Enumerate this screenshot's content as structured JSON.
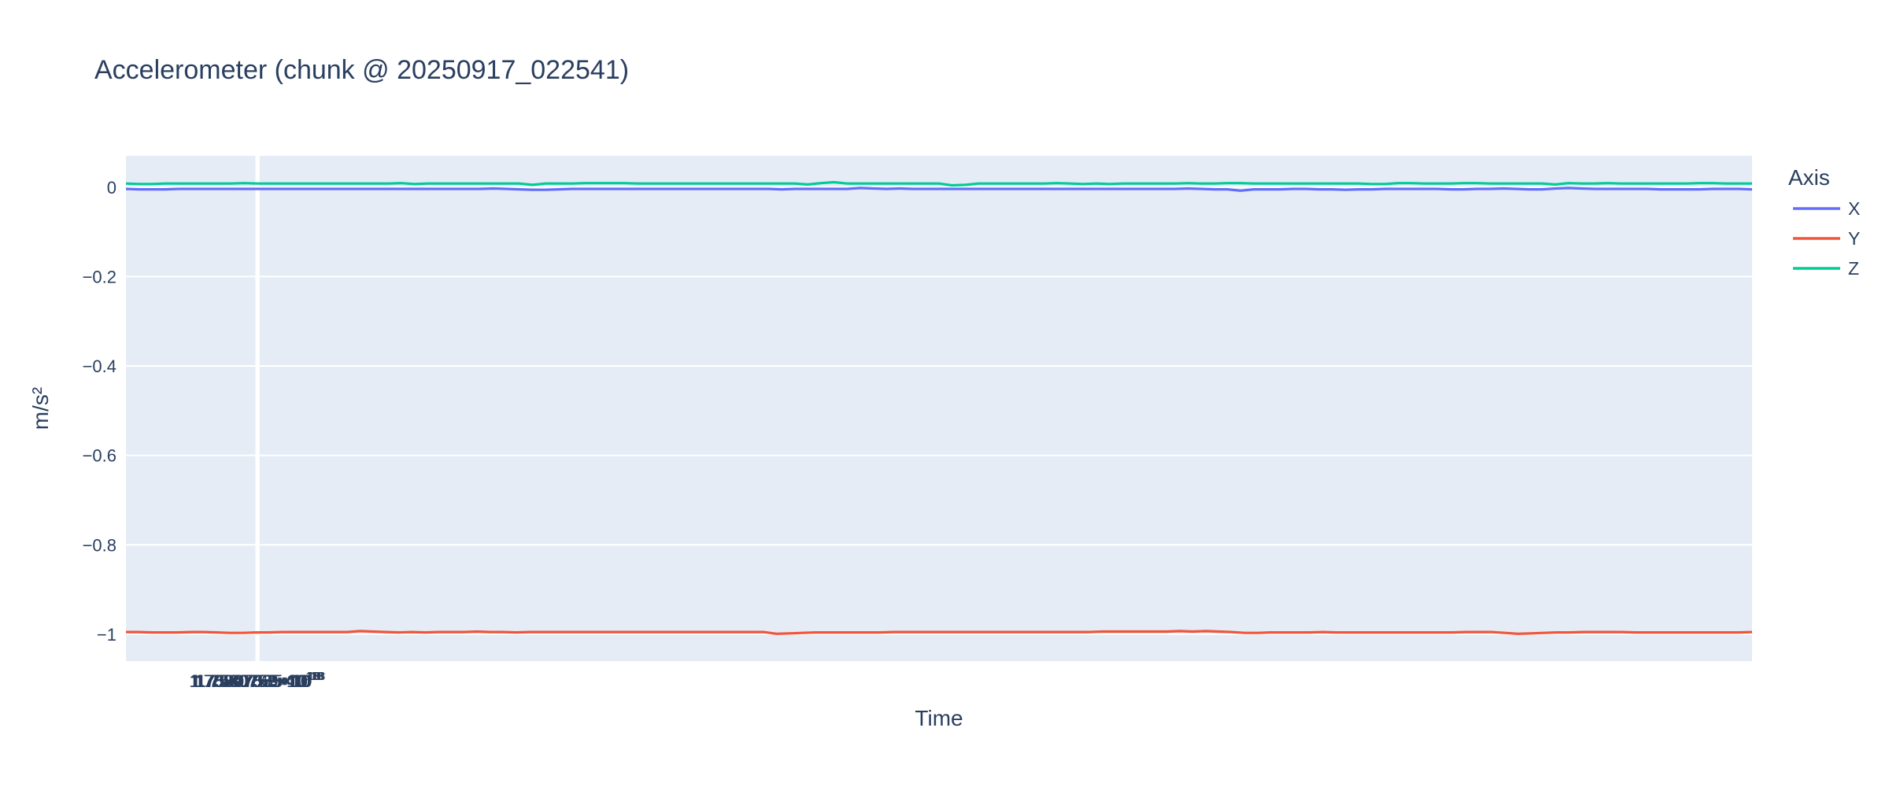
{
  "chart_data": {
    "type": "line",
    "title": "Accelerometer (chunk @ 20250917_022541)",
    "xlabel": "Time",
    "ylabel": "m/s²",
    "x_tick_labels": [
      {
        "value": 1.75807565e+18,
        "mantissa": "1.75807565",
        "exponent": "18"
      },
      {
        "value": 1.7580757e+18,
        "mantissa": "1.7580757",
        "exponent": "18"
      },
      {
        "value": 1.75807575e+18,
        "mantissa": "1.75807575",
        "exponent": "18"
      },
      {
        "value": 1.7580758e+18,
        "mantissa": "1.7580758",
        "exponent": "18"
      },
      {
        "value": 1.75807585e+18,
        "mantissa": "1.75807585",
        "exponent": "18"
      },
      {
        "value": 1.7580759e+18,
        "mantissa": "1.7580759",
        "exponent": "18"
      }
    ],
    "y_tick_labels": [
      "0",
      "−0.2",
      "−0.4",
      "−0.6",
      "−0.8",
      "−1"
    ],
    "y_ticks": [
      0,
      -0.2,
      -0.4,
      -0.6,
      -0.8,
      -1
    ],
    "xlim_offset_units": [
      -0.245,
      2.815
    ],
    "x_axis_base": 1.75807565e+18,
    "x_axis_unit": 50000000000000.0,
    "ylim": [
      -1.06,
      0.07
    ],
    "grid": true,
    "legend": {
      "title": "Axis",
      "position": "right"
    },
    "colors": {
      "plot_bg": "#e5ecf6",
      "grid": "#ffffff",
      "text": "#2a3f5f"
    },
    "series": [
      {
        "name": "X",
        "color": "#636efa",
        "values": [
          -0.004,
          -0.005,
          -0.005,
          -0.005,
          -0.004,
          -0.004,
          -0.004,
          -0.004,
          -0.004,
          -0.004,
          -0.004,
          -0.004,
          -0.004,
          -0.004,
          -0.004,
          -0.004,
          -0.004,
          -0.004,
          -0.004,
          -0.004,
          -0.004,
          -0.004,
          -0.004,
          -0.004,
          -0.004,
          -0.004,
          -0.004,
          -0.004,
          -0.003,
          -0.004,
          -0.005,
          -0.006,
          -0.006,
          -0.005,
          -0.004,
          -0.004,
          -0.004,
          -0.004,
          -0.004,
          -0.004,
          -0.004,
          -0.004,
          -0.004,
          -0.004,
          -0.004,
          -0.004,
          -0.004,
          -0.004,
          -0.004,
          -0.004,
          -0.005,
          -0.004,
          -0.004,
          -0.004,
          -0.004,
          -0.004,
          -0.002,
          -0.003,
          -0.004,
          -0.003,
          -0.004,
          -0.004,
          -0.004,
          -0.004,
          -0.004,
          -0.004,
          -0.004,
          -0.004,
          -0.004,
          -0.004,
          -0.004,
          -0.004,
          -0.004,
          -0.004,
          -0.004,
          -0.004,
          -0.004,
          -0.004,
          -0.004,
          -0.004,
          -0.004,
          -0.003,
          -0.004,
          -0.005,
          -0.005,
          -0.008,
          -0.005,
          -0.005,
          -0.005,
          -0.004,
          -0.004,
          -0.005,
          -0.005,
          -0.006,
          -0.005,
          -0.005,
          -0.004,
          -0.004,
          -0.004,
          -0.004,
          -0.004,
          -0.005,
          -0.005,
          -0.004,
          -0.004,
          -0.003,
          -0.004,
          -0.005,
          -0.005,
          -0.003,
          -0.002,
          -0.003,
          -0.004,
          -0.004,
          -0.004,
          -0.004,
          -0.004,
          -0.005,
          -0.005,
          -0.005,
          -0.005,
          -0.004,
          -0.004,
          -0.004,
          -0.005
        ]
      },
      {
        "name": "Y",
        "color": "#ef553b",
        "values": [
          -0.995,
          -0.995,
          -0.996,
          -0.996,
          -0.996,
          -0.995,
          -0.995,
          -0.996,
          -0.997,
          -0.997,
          -0.996,
          -0.996,
          -0.995,
          -0.995,
          -0.995,
          -0.995,
          -0.995,
          -0.995,
          -0.993,
          -0.994,
          -0.995,
          -0.996,
          -0.995,
          -0.996,
          -0.995,
          -0.995,
          -0.995,
          -0.994,
          -0.995,
          -0.995,
          -0.996,
          -0.995,
          -0.995,
          -0.995,
          -0.995,
          -0.995,
          -0.995,
          -0.995,
          -0.995,
          -0.995,
          -0.995,
          -0.995,
          -0.995,
          -0.995,
          -0.995,
          -0.995,
          -0.995,
          -0.995,
          -0.995,
          -0.995,
          -0.999,
          -0.998,
          -0.997,
          -0.996,
          -0.996,
          -0.996,
          -0.996,
          -0.996,
          -0.996,
          -0.995,
          -0.995,
          -0.995,
          -0.995,
          -0.995,
          -0.995,
          -0.995,
          -0.995,
          -0.995,
          -0.995,
          -0.995,
          -0.995,
          -0.995,
          -0.995,
          -0.995,
          -0.995,
          -0.994,
          -0.994,
          -0.994,
          -0.994,
          -0.994,
          -0.994,
          -0.993,
          -0.994,
          -0.993,
          -0.994,
          -0.995,
          -0.997,
          -0.997,
          -0.996,
          -0.996,
          -0.996,
          -0.996,
          -0.995,
          -0.996,
          -0.996,
          -0.996,
          -0.996,
          -0.996,
          -0.996,
          -0.996,
          -0.996,
          -0.996,
          -0.996,
          -0.995,
          -0.995,
          -0.995,
          -0.997,
          -0.999,
          -0.998,
          -0.997,
          -0.996,
          -0.996,
          -0.995,
          -0.995,
          -0.995,
          -0.995,
          -0.996,
          -0.996,
          -0.996,
          -0.996,
          -0.996,
          -0.996,
          -0.996,
          -0.996,
          -0.996,
          -0.995
        ]
      },
      {
        "name": "Z",
        "color": "#00cc96",
        "values": [
          0.008,
          0.007,
          0.007,
          0.008,
          0.008,
          0.008,
          0.008,
          0.008,
          0.008,
          0.009,
          0.008,
          0.008,
          0.008,
          0.008,
          0.008,
          0.008,
          0.008,
          0.008,
          0.008,
          0.008,
          0.008,
          0.009,
          0.007,
          0.008,
          0.008,
          0.008,
          0.008,
          0.008,
          0.008,
          0.008,
          0.008,
          0.005,
          0.008,
          0.008,
          0.008,
          0.009,
          0.009,
          0.009,
          0.009,
          0.008,
          0.008,
          0.008,
          0.008,
          0.008,
          0.008,
          0.008,
          0.008,
          0.008,
          0.008,
          0.008,
          0.008,
          0.008,
          0.006,
          0.009,
          0.011,
          0.008,
          0.008,
          0.008,
          0.008,
          0.008,
          0.008,
          0.008,
          0.008,
          0.004,
          0.005,
          0.008,
          0.008,
          0.008,
          0.008,
          0.008,
          0.008,
          0.009,
          0.008,
          0.007,
          0.008,
          0.007,
          0.008,
          0.008,
          0.008,
          0.008,
          0.008,
          0.009,
          0.008,
          0.008,
          0.009,
          0.009,
          0.008,
          0.008,
          0.008,
          0.008,
          0.008,
          0.008,
          0.008,
          0.008,
          0.008,
          0.007,
          0.007,
          0.009,
          0.009,
          0.008,
          0.008,
          0.008,
          0.009,
          0.009,
          0.008,
          0.008,
          0.008,
          0.008,
          0.008,
          0.006,
          0.009,
          0.008,
          0.008,
          0.009,
          0.008,
          0.008,
          0.008,
          0.008,
          0.008,
          0.008,
          0.009,
          0.009,
          0.008,
          0.008,
          0.008
        ]
      }
    ]
  }
}
